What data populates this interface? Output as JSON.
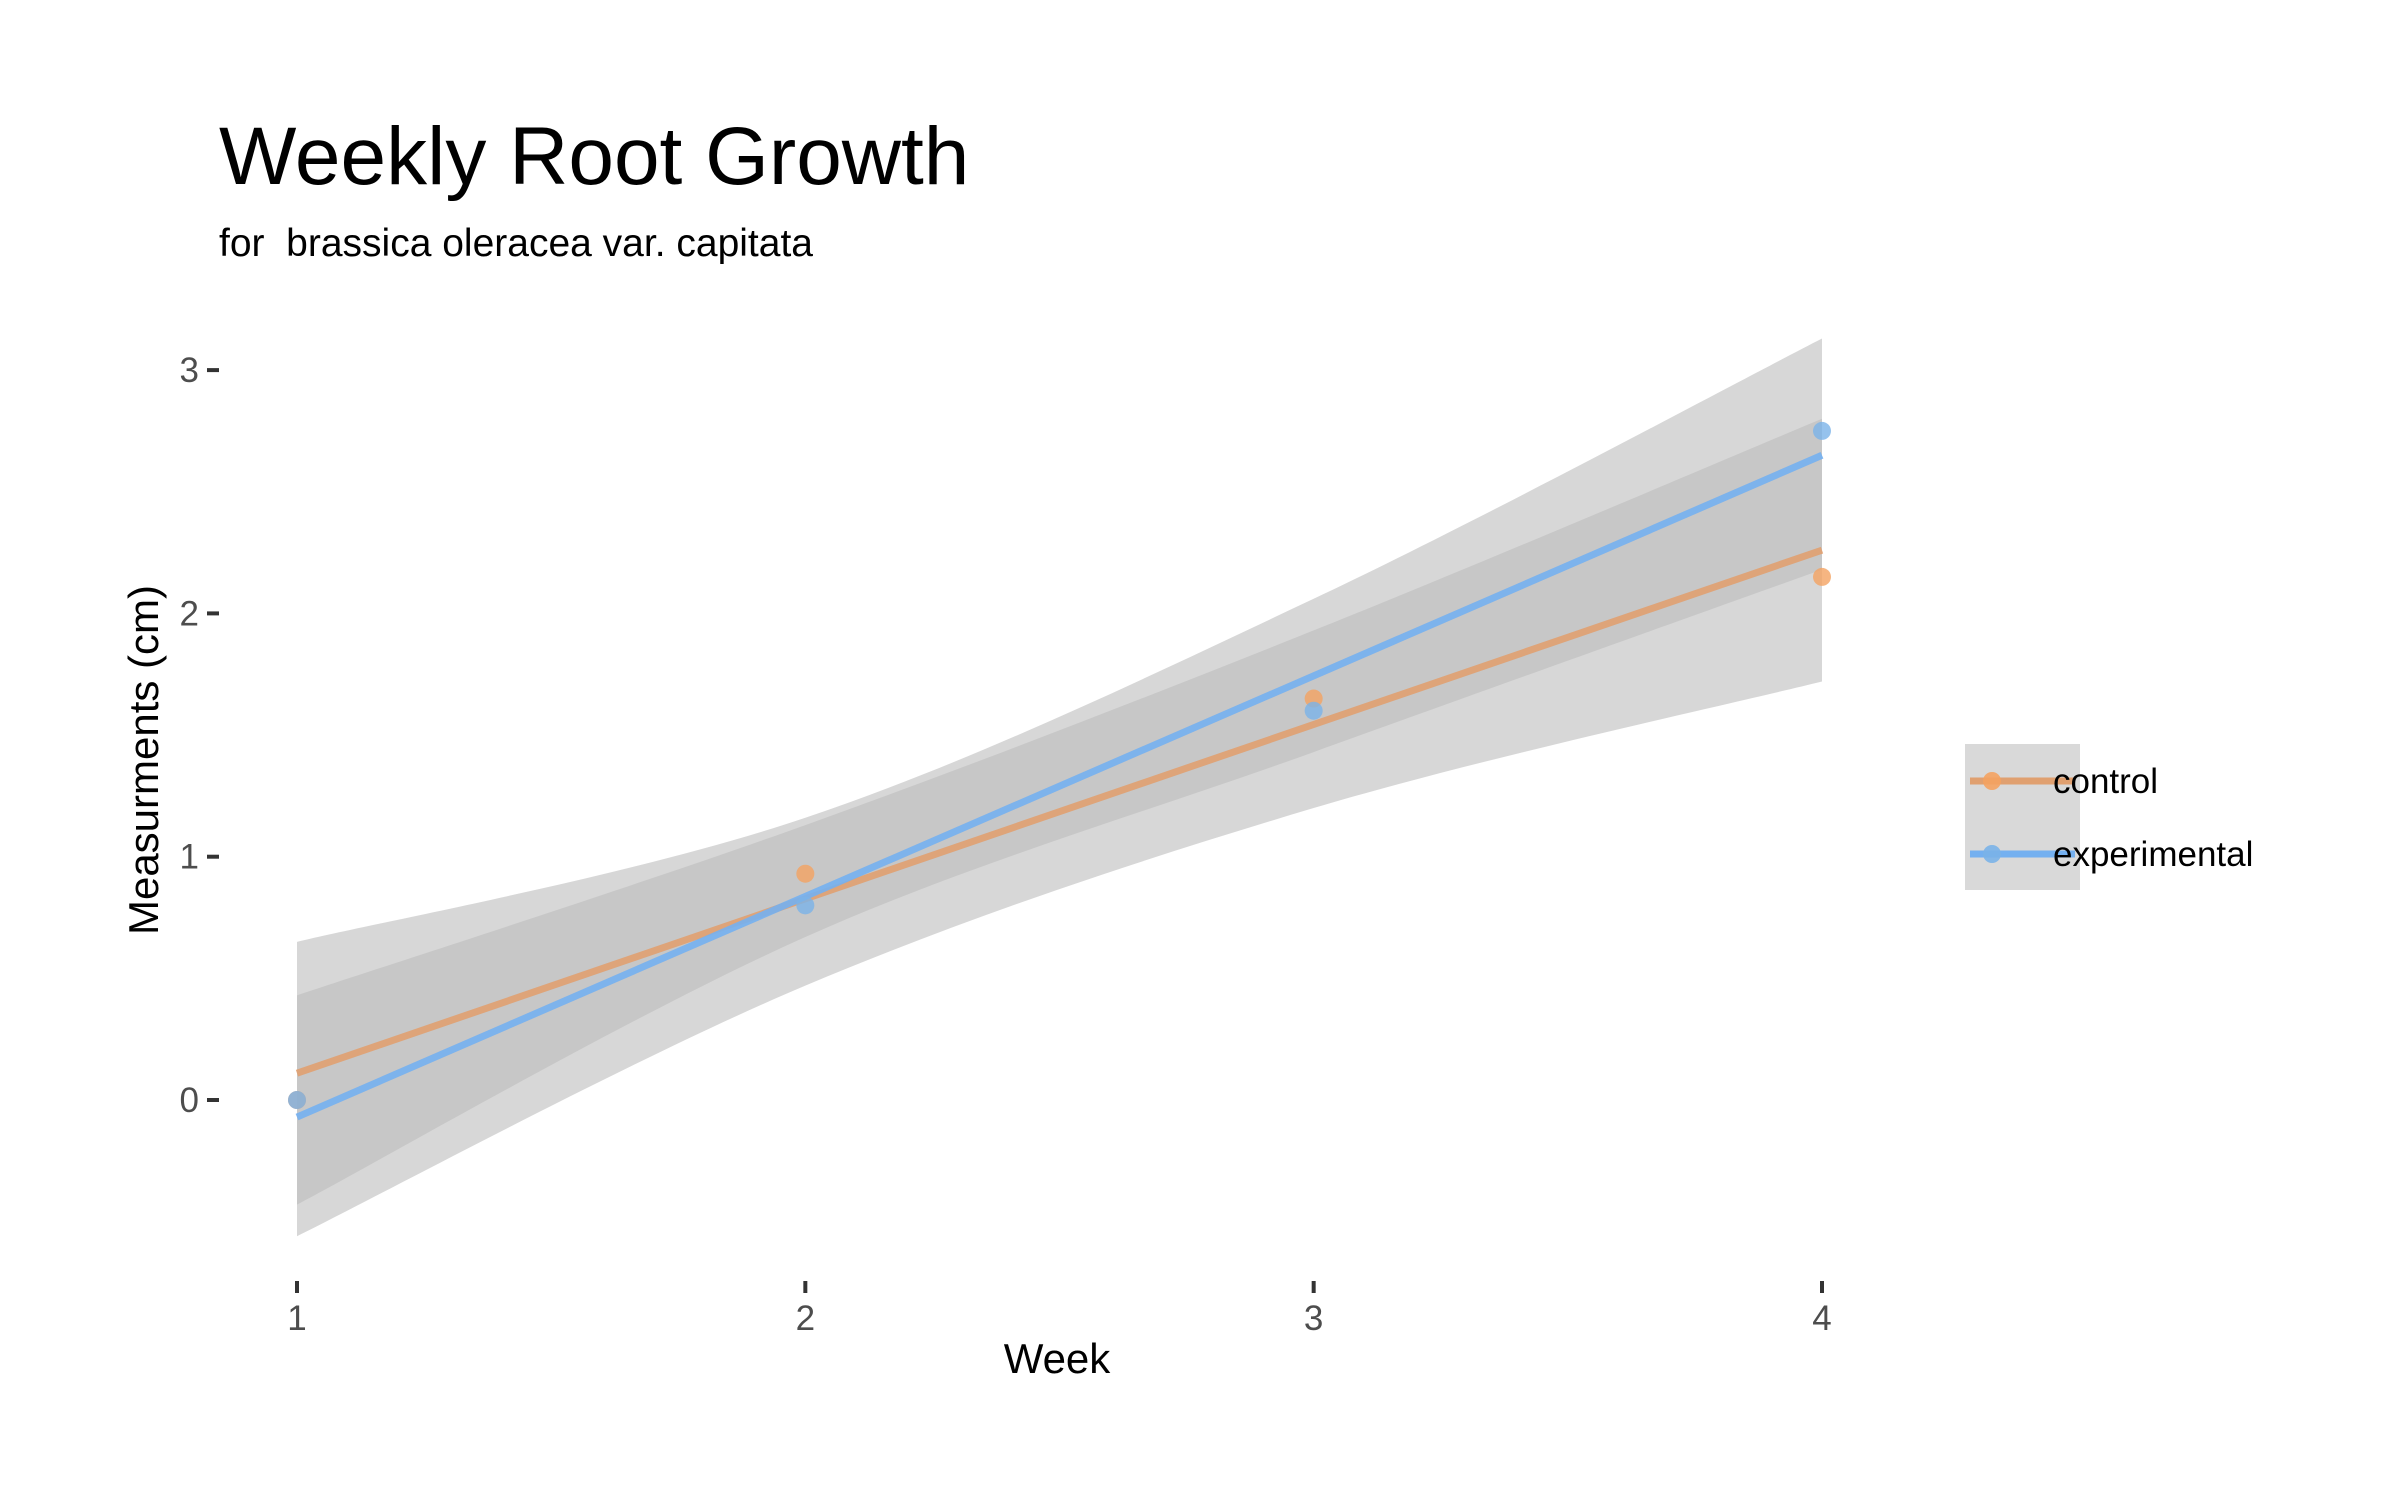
{
  "chart_data": {
    "type": "line",
    "title": "Weekly Root Growth",
    "subtitle": "for  brassica oleracea var. capitata",
    "xlabel": "Week",
    "ylabel": "Measurments (cm)",
    "xlim": [
      1,
      4
    ],
    "ylim": [
      -0.55,
      3.15
    ],
    "x_ticks": [
      1,
      2,
      3,
      4
    ],
    "y_ticks": [
      0,
      1,
      2,
      3
    ],
    "grid": false,
    "legend_position": "right",
    "series": [
      {
        "name": "control",
        "color": "#f4a261",
        "line_color": "#e0a070",
        "points": [
          {
            "x": 1,
            "y": 0.0
          },
          {
            "x": 2,
            "y": 0.93
          },
          {
            "x": 3,
            "y": 1.65
          },
          {
            "x": 4,
            "y": 2.15
          }
        ],
        "fit": [
          {
            "x": 1,
            "y": 0.11
          },
          {
            "x": 4,
            "y": 2.26
          }
        ],
        "ci_upper": [
          {
            "x": 1,
            "y": 0.43
          },
          {
            "x": 2,
            "y": 1.13
          },
          {
            "x": 3,
            "y": 1.93
          },
          {
            "x": 4,
            "y": 2.8
          }
        ],
        "ci_lower": [
          {
            "x": 1,
            "y": -0.43
          },
          {
            "x": 2,
            "y": 0.67
          },
          {
            "x": 3,
            "y": 1.43
          },
          {
            "x": 4,
            "y": 2.18
          }
        ]
      },
      {
        "name": "experimental",
        "color": "#7ab3e8",
        "line_color": "#74b0f0",
        "points": [
          {
            "x": 1,
            "y": 0.0
          },
          {
            "x": 2,
            "y": 0.8
          },
          {
            "x": 3,
            "y": 1.6
          },
          {
            "x": 4,
            "y": 2.75
          }
        ],
        "fit": [
          {
            "x": 1,
            "y": -0.07
          },
          {
            "x": 4,
            "y": 2.65
          }
        ],
        "ci_upper": [
          {
            "x": 1,
            "y": 0.65
          },
          {
            "x": 2,
            "y": 1.16
          },
          {
            "x": 3,
            "y": 2.06
          },
          {
            "x": 4,
            "y": 3.13
          }
        ],
        "ci_lower": [
          {
            "x": 1,
            "y": -0.56
          },
          {
            "x": 2,
            "y": 0.47
          },
          {
            "x": 3,
            "y": 1.2
          },
          {
            "x": 4,
            "y": 1.72
          }
        ]
      }
    ]
  },
  "colors": {
    "ci_band": "#bdbdbd",
    "legend_key_bg": "#d9d9d9",
    "tick_text": "#4d4d4d"
  }
}
